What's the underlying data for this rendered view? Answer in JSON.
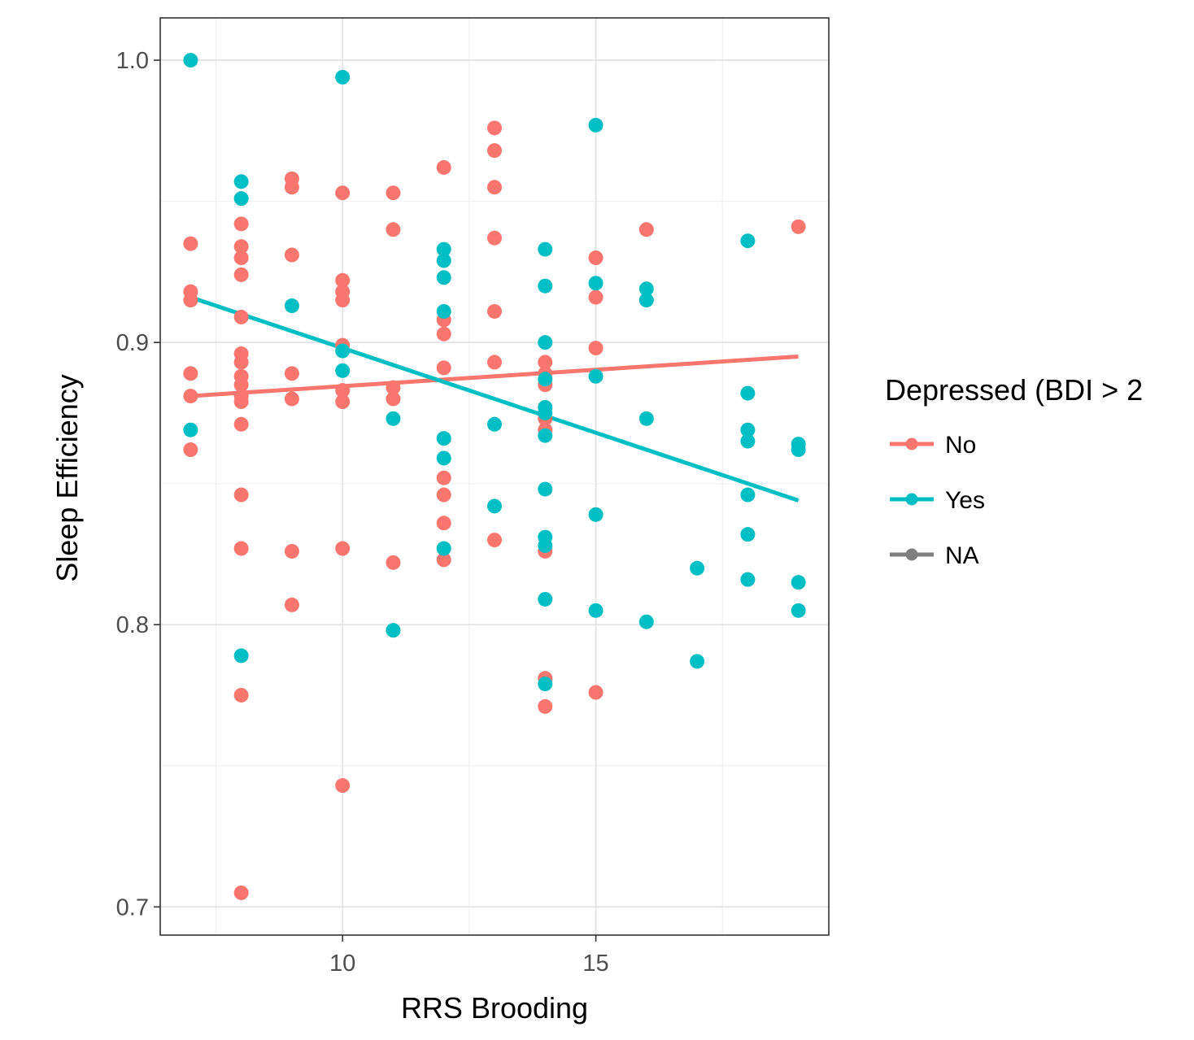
{
  "chart_data": {
    "type": "scatter",
    "title": "",
    "xlabel": "RRS Brooding",
    "ylabel": "Sleep Efficiency",
    "xlim": [
      6.4,
      19.6
    ],
    "ylim": [
      0.69,
      1.015
    ],
    "x_ticks": [
      {
        "value": 10,
        "label": "10"
      },
      {
        "value": 15,
        "label": "15"
      }
    ],
    "y_ticks": [
      {
        "value": 0.7,
        "label": "0.7"
      },
      {
        "value": 0.8,
        "label": "0.8"
      },
      {
        "value": 0.9,
        "label": "0.9"
      },
      {
        "value": 1.0,
        "label": "1.0"
      }
    ],
    "x_minor_grid": [
      7.5,
      12.5,
      17.5
    ],
    "y_minor_grid": [
      0.75,
      0.85,
      0.95
    ],
    "grid": true,
    "legend": {
      "title": "Depressed (BDI > 2",
      "position": "right"
    },
    "series": [
      {
        "name": "No",
        "color": "#F8766D",
        "points": [
          [
            7,
            0.935
          ],
          [
            7,
            0.918
          ],
          [
            7,
            0.915
          ],
          [
            7,
            0.889
          ],
          [
            7,
            0.881
          ],
          [
            7,
            0.862
          ],
          [
            8,
            0.942
          ],
          [
            8,
            0.934
          ],
          [
            8,
            0.93
          ],
          [
            8,
            0.924
          ],
          [
            8,
            0.909
          ],
          [
            8,
            0.896
          ],
          [
            8,
            0.893
          ],
          [
            8,
            0.888
          ],
          [
            8,
            0.885
          ],
          [
            8,
            0.881
          ],
          [
            8,
            0.879
          ],
          [
            8,
            0.871
          ],
          [
            8,
            0.846
          ],
          [
            8,
            0.827
          ],
          [
            8,
            0.775
          ],
          [
            8,
            0.705
          ],
          [
            9,
            0.958
          ],
          [
            9,
            0.955
          ],
          [
            9,
            0.931
          ],
          [
            9,
            0.889
          ],
          [
            9,
            0.88
          ],
          [
            9,
            0.826
          ],
          [
            9,
            0.807
          ],
          [
            10,
            0.953
          ],
          [
            10,
            0.922
          ],
          [
            10,
            0.918
          ],
          [
            10,
            0.915
          ],
          [
            10,
            0.899
          ],
          [
            10,
            0.883
          ],
          [
            10,
            0.879
          ],
          [
            10,
            0.827
          ],
          [
            10,
            0.743
          ],
          [
            11,
            0.953
          ],
          [
            11,
            0.94
          ],
          [
            11,
            0.884
          ],
          [
            11,
            0.88
          ],
          [
            11,
            0.822
          ],
          [
            12,
            0.962
          ],
          [
            12,
            0.908
          ],
          [
            12,
            0.903
          ],
          [
            12,
            0.891
          ],
          [
            12,
            0.852
          ],
          [
            12,
            0.846
          ],
          [
            12,
            0.836
          ],
          [
            12,
            0.823
          ],
          [
            13,
            0.976
          ],
          [
            13,
            0.968
          ],
          [
            13,
            0.955
          ],
          [
            13,
            0.937
          ],
          [
            13,
            0.911
          ],
          [
            13,
            0.893
          ],
          [
            13,
            0.83
          ],
          [
            14,
            0.893
          ],
          [
            14,
            0.889
          ],
          [
            14,
            0.885
          ],
          [
            14,
            0.873
          ],
          [
            14,
            0.869
          ],
          [
            14,
            0.826
          ],
          [
            14,
            0.781
          ],
          [
            14,
            0.771
          ],
          [
            15,
            0.93
          ],
          [
            15,
            0.916
          ],
          [
            15,
            0.898
          ],
          [
            15,
            0.776
          ],
          [
            16,
            0.94
          ],
          [
            19,
            0.941
          ]
        ],
        "trend": {
          "x": [
            7,
            19
          ],
          "y": [
            0.881,
            0.895
          ]
        }
      },
      {
        "name": "Yes",
        "color": "#00BFC4",
        "points": [
          [
            7,
            1.0
          ],
          [
            7,
            0.869
          ],
          [
            8,
            0.957
          ],
          [
            8,
            0.951
          ],
          [
            8,
            0.789
          ],
          [
            9,
            0.913
          ],
          [
            10,
            0.994
          ],
          [
            10,
            0.897
          ],
          [
            10,
            0.89
          ],
          [
            11,
            0.873
          ],
          [
            11,
            0.798
          ],
          [
            12,
            0.933
          ],
          [
            12,
            0.929
          ],
          [
            12,
            0.923
          ],
          [
            12,
            0.911
          ],
          [
            12,
            0.866
          ],
          [
            12,
            0.859
          ],
          [
            12,
            0.827
          ],
          [
            13,
            0.871
          ],
          [
            13,
            0.842
          ],
          [
            14,
            0.933
          ],
          [
            14,
            0.92
          ],
          [
            14,
            0.9
          ],
          [
            14,
            0.887
          ],
          [
            14,
            0.877
          ],
          [
            14,
            0.875
          ],
          [
            14,
            0.867
          ],
          [
            14,
            0.848
          ],
          [
            14,
            0.831
          ],
          [
            14,
            0.828
          ],
          [
            14,
            0.809
          ],
          [
            14,
            0.779
          ],
          [
            15,
            0.977
          ],
          [
            15,
            0.921
          ],
          [
            15,
            0.888
          ],
          [
            15,
            0.839
          ],
          [
            15,
            0.805
          ],
          [
            16,
            0.919
          ],
          [
            16,
            0.915
          ],
          [
            16,
            0.873
          ],
          [
            16,
            0.801
          ],
          [
            17,
            0.82
          ],
          [
            17,
            0.787
          ],
          [
            18,
            0.936
          ],
          [
            18,
            0.882
          ],
          [
            18,
            0.869
          ],
          [
            18,
            0.865
          ],
          [
            18,
            0.846
          ],
          [
            18,
            0.832
          ],
          [
            18,
            0.816
          ],
          [
            19,
            0.864
          ],
          [
            19,
            0.862
          ],
          [
            19,
            0.815
          ],
          [
            19,
            0.805
          ]
        ],
        "trend": {
          "x": [
            7,
            19
          ],
          "y": [
            0.916,
            0.844
          ]
        }
      },
      {
        "name": "NA",
        "color": "#7F7F7F",
        "points": [],
        "trend": null
      }
    ]
  }
}
